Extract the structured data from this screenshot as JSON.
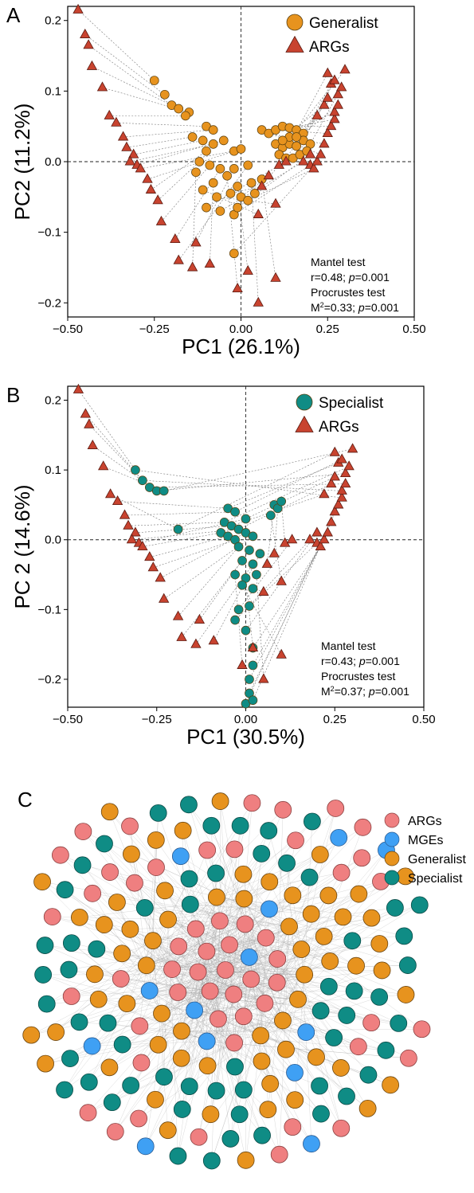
{
  "colors": {
    "generalist": "#E7931E",
    "specialist": "#0F8C85",
    "args": "#C8432F",
    "args_node": "#EF7F80",
    "mges": "#3FA0F4",
    "edge": "#9a9a9a",
    "axis": "#000000"
  },
  "chart_data": [
    {
      "panel": "A",
      "type": "scatter",
      "xlabel": "PC1 (26.1%)",
      "ylabel": "PC2 (11.2%)",
      "xlim": [
        -0.5,
        0.5
      ],
      "ylim": [
        -0.22,
        0.22
      ],
      "xticks": [
        -0.5,
        -0.25,
        0.0,
        0.25,
        0.5
      ],
      "xtick_labels": [
        "−0.50",
        "−0.25",
        "0.00",
        "0.25",
        "0.50"
      ],
      "yticks": [
        -0.2,
        -0.1,
        0.0,
        0.1,
        0.2
      ],
      "ytick_labels": [
        "−0.2",
        "−0.1",
        "0.0",
        "0.1",
        "0.2"
      ],
      "legend": [
        "Generalist",
        "ARGs"
      ],
      "legend_position": "top-right",
      "annotation": {
        "mantel_title": "Mantel test",
        "mantel_r": "r=0.48; ",
        "mantel_p_sym": "p",
        "mantel_p": "=0.001",
        "proc_title": "Procrustes test",
        "proc_m": "M",
        "proc_sup": "2",
        "proc_val": "=0.33; ",
        "proc_p_sym": "p",
        "proc_p": "=0.001"
      },
      "series": [
        {
          "name": "Generalist",
          "points": [
            [
              -0.25,
              0.115
            ],
            [
              -0.22,
              0.095
            ],
            [
              -0.2,
              0.08
            ],
            [
              -0.18,
              0.075
            ],
            [
              -0.15,
              0.07
            ],
            [
              -0.16,
              0.065
            ],
            [
              -0.1,
              0.05
            ],
            [
              -0.08,
              0.045
            ],
            [
              -0.14,
              0.035
            ],
            [
              -0.11,
              0.03
            ],
            [
              -0.08,
              0.025
            ],
            [
              -0.05,
              0.03
            ],
            [
              -0.02,
              0.015
            ],
            [
              0.0,
              0.018
            ],
            [
              -0.1,
              0.015
            ],
            [
              -0.12,
              0.0
            ],
            [
              -0.09,
              -0.005
            ],
            [
              -0.06,
              -0.01
            ],
            [
              -0.02,
              -0.01
            ],
            [
              0.02,
              -0.005
            ],
            [
              -0.13,
              -0.015
            ],
            [
              -0.08,
              -0.03
            ],
            [
              -0.04,
              -0.02
            ],
            [
              -0.01,
              -0.035
            ],
            [
              0.03,
              -0.03
            ],
            [
              0.06,
              -0.025
            ],
            [
              -0.11,
              -0.04
            ],
            [
              -0.07,
              -0.05
            ],
            [
              -0.03,
              -0.045
            ],
            [
              0.0,
              -0.05
            ],
            [
              0.04,
              -0.045
            ],
            [
              -0.1,
              -0.065
            ],
            [
              -0.06,
              -0.07
            ],
            [
              -0.02,
              -0.075
            ],
            [
              -0.01,
              -0.065
            ],
            [
              0.02,
              -0.055
            ],
            [
              -0.02,
              -0.13
            ],
            [
              0.06,
              0.045
            ],
            [
              0.08,
              0.04
            ],
            [
              0.1,
              0.045
            ],
            [
              0.12,
              0.05
            ],
            [
              0.14,
              0.048
            ],
            [
              0.16,
              0.045
            ],
            [
              0.18,
              0.04
            ],
            [
              0.1,
              0.025
            ],
            [
              0.12,
              0.02
            ],
            [
              0.14,
              0.025
            ],
            [
              0.16,
              0.022
            ],
            [
              0.18,
              0.03
            ],
            [
              0.2,
              0.025
            ],
            [
              0.11,
              0.01
            ],
            [
              0.13,
              0.005
            ],
            [
              0.15,
              0.005
            ],
            [
              0.17,
              0.01
            ],
            [
              0.19,
              0.015
            ],
            [
              0.14,
              0.035
            ],
            [
              0.16,
              0.035
            ],
            [
              0.12,
              0.03
            ]
          ]
        },
        {
          "name": "ARGs",
          "points": [
            [
              -0.47,
              0.215
            ],
            [
              -0.45,
              0.18
            ],
            [
              -0.44,
              0.165
            ],
            [
              -0.43,
              0.135
            ],
            [
              -0.4,
              0.105
            ],
            [
              -0.38,
              0.065
            ],
            [
              -0.36,
              0.055
            ],
            [
              -0.34,
              0.035
            ],
            [
              -0.33,
              0.02
            ],
            [
              -0.31,
              0.01
            ],
            [
              -0.32,
              0.0
            ],
            [
              -0.3,
              -0.005
            ],
            [
              -0.29,
              -0.01
            ],
            [
              -0.27,
              -0.025
            ],
            [
              -0.26,
              -0.04
            ],
            [
              -0.24,
              -0.055
            ],
            [
              -0.23,
              -0.085
            ],
            [
              -0.19,
              -0.11
            ],
            [
              -0.13,
              -0.115
            ],
            [
              -0.18,
              -0.14
            ],
            [
              -0.14,
              -0.15
            ],
            [
              -0.09,
              -0.145
            ],
            [
              -0.01,
              -0.18
            ],
            [
              0.02,
              -0.155
            ],
            [
              0.05,
              -0.2
            ],
            [
              0.1,
              -0.165
            ],
            [
              0.05,
              -0.075
            ],
            [
              0.1,
              -0.06
            ],
            [
              0.06,
              -0.035
            ],
            [
              0.08,
              -0.02
            ],
            [
              0.11,
              -0.005
            ],
            [
              0.13,
              0.0
            ],
            [
              0.18,
              0.0
            ],
            [
              0.2,
              -0.005
            ],
            [
              0.2,
              0.01
            ],
            [
              0.21,
              -0.01
            ],
            [
              0.22,
              0.0
            ],
            [
              0.23,
              0.01
            ],
            [
              0.24,
              0.025
            ],
            [
              0.25,
              0.04
            ],
            [
              0.26,
              0.05
            ],
            [
              0.27,
              0.06
            ],
            [
              0.27,
              0.07
            ],
            [
              0.28,
              0.08
            ],
            [
              0.28,
              0.095
            ],
            [
              0.3,
              0.13
            ],
            [
              0.25,
              0.125
            ],
            [
              0.26,
              0.11
            ],
            [
              0.27,
              0.115
            ],
            [
              0.29,
              0.105
            ],
            [
              0.22,
              0.065
            ],
            [
              0.24,
              0.08
            ],
            [
              0.25,
              0.09
            ]
          ]
        }
      ]
    },
    {
      "panel": "B",
      "type": "scatter",
      "xlabel": "PC1 (30.5%)",
      "ylabel": "PC 2 (14.6%)",
      "xlim": [
        -0.5,
        0.5
      ],
      "ylim": [
        -0.24,
        0.22
      ],
      "xticks": [
        -0.5,
        -0.25,
        0.0,
        0.25,
        0.5
      ],
      "xtick_labels": [
        "−0.50",
        "−0.25",
        "0.00",
        "0.25",
        "0.50"
      ],
      "yticks": [
        -0.2,
        -0.1,
        0.0,
        0.1,
        0.2
      ],
      "ytick_labels": [
        "−0.2",
        "−0.1",
        "0.0",
        "0.1",
        "0.2"
      ],
      "legend": [
        "Specialist",
        "ARGs"
      ],
      "legend_position": "top-right",
      "annotation": {
        "mantel_title": "Mantel test",
        "mantel_r": "r=0.43; ",
        "mantel_p_sym": "p",
        "mantel_p": "=0.001",
        "proc_title": "Procrustes test",
        "proc_m": "M",
        "proc_sup": "2",
        "proc_val": "=0.37; ",
        "proc_p_sym": "p",
        "proc_p": "=0.001"
      },
      "series": [
        {
          "name": "Specialist",
          "points": [
            [
              -0.31,
              0.1
            ],
            [
              -0.29,
              0.085
            ],
            [
              -0.27,
              0.075
            ],
            [
              -0.25,
              0.07
            ],
            [
              -0.23,
              0.07
            ],
            [
              -0.19,
              0.015
            ],
            [
              -0.05,
              0.045
            ],
            [
              -0.03,
              0.04
            ],
            [
              -0.06,
              0.025
            ],
            [
              -0.04,
              0.02
            ],
            [
              -0.02,
              0.015
            ],
            [
              0.0,
              0.03
            ],
            [
              -0.07,
              0.01
            ],
            [
              -0.05,
              0.005
            ],
            [
              -0.03,
              0.0
            ],
            [
              0.0,
              0.01
            ],
            [
              0.02,
              0.005
            ],
            [
              -0.02,
              -0.01
            ],
            [
              0.01,
              -0.015
            ],
            [
              -0.01,
              -0.03
            ],
            [
              0.02,
              -0.035
            ],
            [
              0.04,
              -0.02
            ],
            [
              -0.03,
              -0.05
            ],
            [
              0.0,
              -0.055
            ],
            [
              0.03,
              -0.05
            ],
            [
              -0.01,
              -0.065
            ],
            [
              0.02,
              -0.07
            ],
            [
              0.07,
              0.035
            ],
            [
              0.08,
              0.05
            ],
            [
              0.09,
              0.045
            ],
            [
              0.1,
              0.055
            ],
            [
              -0.02,
              -0.1
            ],
            [
              0.01,
              -0.095
            ],
            [
              -0.03,
              -0.115
            ],
            [
              0.0,
              -0.13
            ],
            [
              0.02,
              -0.155
            ],
            [
              0.02,
              -0.18
            ],
            [
              0.01,
              -0.2
            ],
            [
              0.01,
              -0.22
            ],
            [
              0.0,
              -0.235
            ],
            [
              0.02,
              -0.23
            ]
          ]
        },
        {
          "name": "ARGs",
          "points": [
            [
              -0.47,
              0.215
            ],
            [
              -0.45,
              0.18
            ],
            [
              -0.44,
              0.165
            ],
            [
              -0.43,
              0.135
            ],
            [
              -0.4,
              0.105
            ],
            [
              -0.38,
              0.065
            ],
            [
              -0.36,
              0.055
            ],
            [
              -0.34,
              0.035
            ],
            [
              -0.33,
              0.02
            ],
            [
              -0.31,
              0.01
            ],
            [
              -0.32,
              0.0
            ],
            [
              -0.3,
              -0.005
            ],
            [
              -0.29,
              -0.01
            ],
            [
              -0.27,
              -0.025
            ],
            [
              -0.26,
              -0.04
            ],
            [
              -0.24,
              -0.055
            ],
            [
              -0.23,
              -0.085
            ],
            [
              -0.19,
              -0.11
            ],
            [
              -0.13,
              -0.115
            ],
            [
              -0.18,
              -0.14
            ],
            [
              -0.14,
              -0.15
            ],
            [
              -0.09,
              -0.145
            ],
            [
              -0.01,
              -0.18
            ],
            [
              0.02,
              -0.155
            ],
            [
              0.05,
              -0.2
            ],
            [
              0.1,
              -0.165
            ],
            [
              0.05,
              -0.075
            ],
            [
              0.1,
              -0.06
            ],
            [
              0.06,
              -0.035
            ],
            [
              0.08,
              -0.02
            ],
            [
              0.11,
              -0.005
            ],
            [
              0.13,
              0.0
            ],
            [
              0.18,
              0.0
            ],
            [
              0.2,
              -0.005
            ],
            [
              0.2,
              0.01
            ],
            [
              0.21,
              -0.01
            ],
            [
              0.22,
              0.0
            ],
            [
              0.23,
              0.01
            ],
            [
              0.24,
              0.025
            ],
            [
              0.25,
              0.04
            ],
            [
              0.26,
              0.05
            ],
            [
              0.27,
              0.06
            ],
            [
              0.27,
              0.07
            ],
            [
              0.28,
              0.08
            ],
            [
              0.28,
              0.095
            ],
            [
              0.3,
              0.13
            ],
            [
              0.25,
              0.125
            ],
            [
              0.26,
              0.11
            ],
            [
              0.27,
              0.115
            ],
            [
              0.29,
              0.105
            ],
            [
              0.22,
              0.065
            ],
            [
              0.24,
              0.08
            ],
            [
              0.25,
              0.09
            ]
          ]
        }
      ]
    },
    {
      "panel": "C",
      "type": "network",
      "legend": [
        "ARGs",
        "MGEs",
        "Generalist",
        "Specialist"
      ],
      "legend_position": "top-right",
      "node_counts": {
        "ARGs": 75,
        "MGEs": 15,
        "Generalist": 80,
        "Specialist": 80
      }
    }
  ],
  "panel_labels": [
    "A",
    "B",
    "C"
  ]
}
